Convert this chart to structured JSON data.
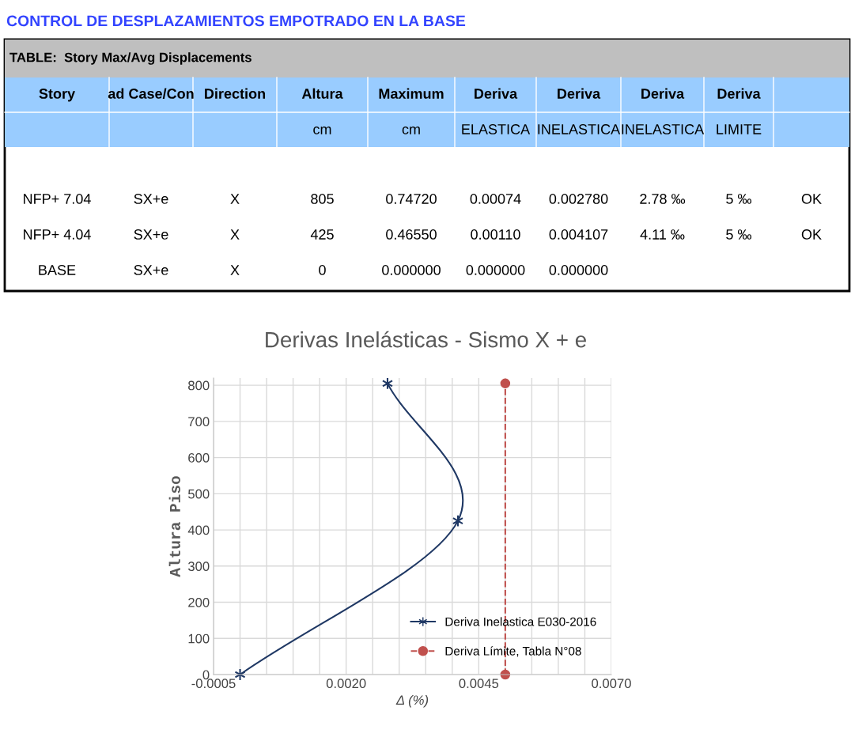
{
  "chart_data": [
    {
      "type": "other",
      "title": "CONTROL DE DESPLAZAMIENTOS EMPOTRADO EN LA BASE",
      "subtitle": "TABLE:  Story Max/Avg Displacements",
      "categories": [
        "Story",
        "ad Case/Con",
        "Direction",
        "Altura",
        "Maximum",
        "Deriva",
        "Deriva",
        "Deriva",
        "Deriva",
        null
      ],
      "annotations": [
        null,
        null,
        null,
        "cm",
        "cm",
        "ELASTICA",
        "INELASTICA",
        "INELASTICA",
        "LIMITE",
        null,
        "NFP+ 7.04",
        "SX+e",
        "X",
        "805",
        "0.74720",
        "0.00074",
        "0.002780",
        "2.78 ‰",
        "5 ‰",
        "OK",
        "NFP+ 4.04",
        "SX+e",
        "X",
        "425",
        "0.46550",
        "0.00110",
        "0.004107",
        "4.11 ‰",
        "5 ‰",
        "OK",
        "BASE",
        "SX+e",
        "X",
        "0",
        "0.000000",
        "0.000000",
        "0.000000",
        null,
        null,
        null
      ]
    },
    {
      "type": "line",
      "title": "Derivas Inelásticas - Sismo X + e",
      "xlabel": "Δ (%)",
      "ylabel": "Altura Piso",
      "xlim": [
        -0.0005,
        0.007
      ],
      "xticks": [
        -0.0005,
        {
          "value": 0.0,
          "label": null
        },
        {
          "value": 0.0005,
          "label": null
        },
        {
          "value": 0.001,
          "label": null
        },
        {
          "value": 0.0015,
          "label": null
        },
        {
          "value": 0.002,
          "label": "0.0020"
        },
        {
          "value": 0.0025,
          "label": null
        },
        {
          "value": 0.003,
          "label": null
        },
        {
          "value": 0.0035,
          "label": null
        },
        {
          "value": 0.004,
          "label": null
        },
        {
          "value": 0.0045,
          "label": "0.0045"
        },
        {
          "value": 0.005,
          "label": null
        },
        {
          "value": 0.0055,
          "label": null
        },
        {
          "value": 0.006,
          "label": null
        },
        {
          "value": 0.0065,
          "label": null
        },
        {
          "value": 0.007,
          "label": "0.0070"
        }
      ],
      "ylim": [
        0,
        820
      ],
      "yticks": [
        0,
        100,
        200,
        300,
        400,
        500,
        600,
        700,
        800
      ],
      "grid": true,
      "legend": "bottom right",
      "series": [
        {
          "name": "Deriva Inelastica E030-2016",
          "color": "#1f3864",
          "x": [
            0,
            0.004107,
            0.00278
          ],
          "values": [
            0,
            425,
            805
          ],
          "marker": "cross",
          "line_style": "solid"
        },
        {
          "name": "Deriva Límite, Tabla N°08",
          "color": "#c0504d",
          "x": [
            0.005,
            0.005
          ],
          "values": [
            0,
            805
          ],
          "marker": "circle",
          "line_style": "dashed"
        }
      ]
    }
  ]
}
